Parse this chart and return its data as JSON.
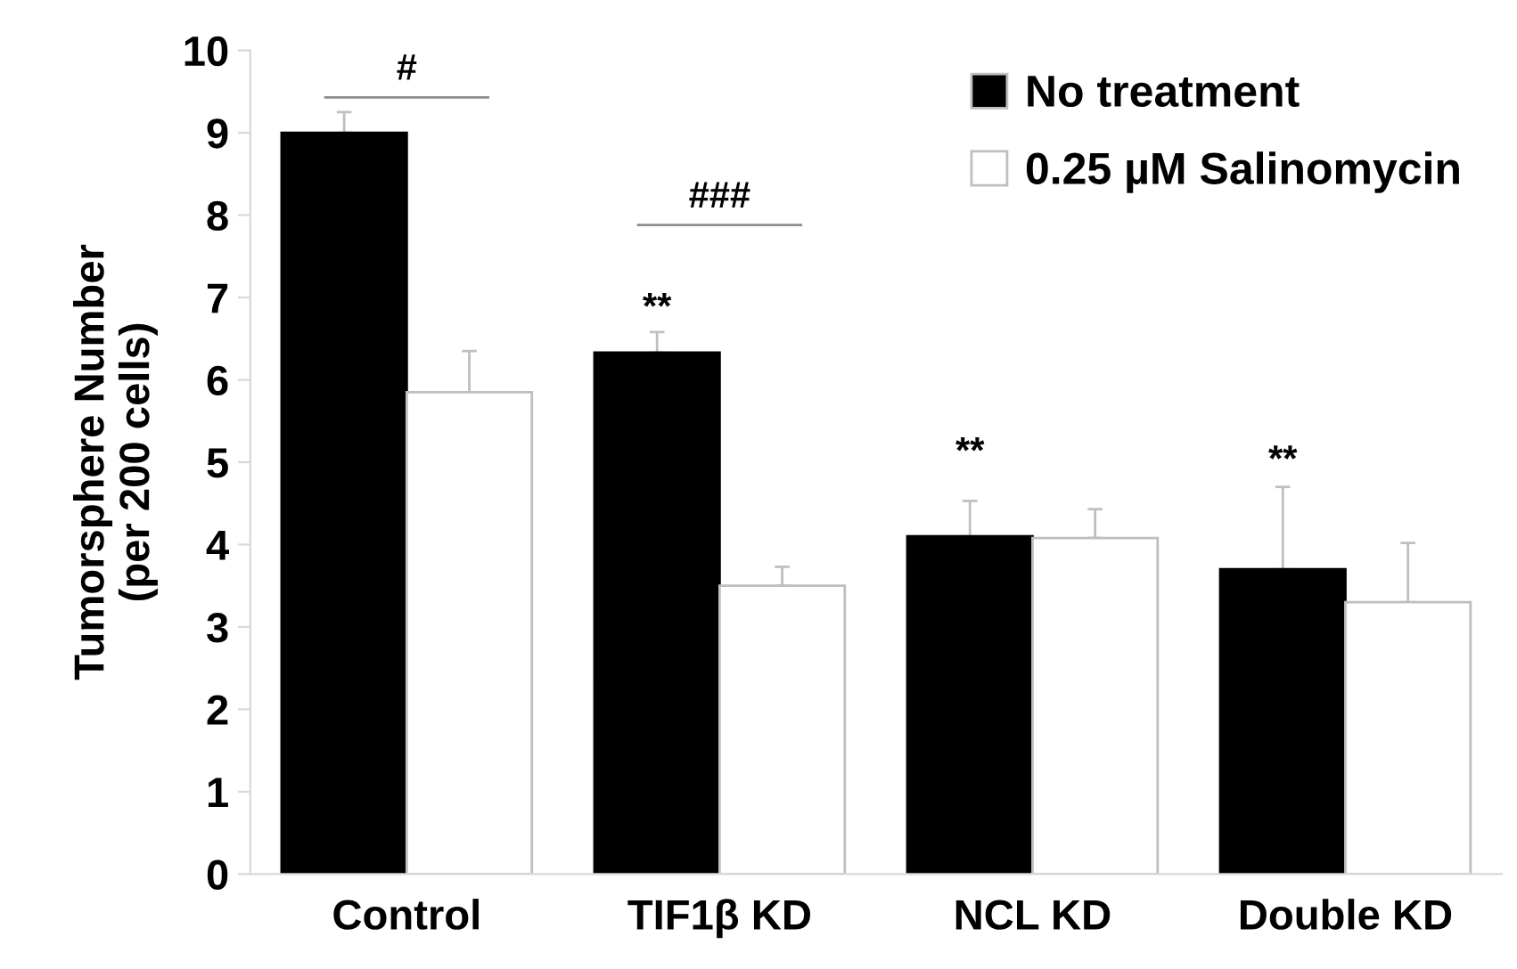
{
  "chart_data": {
    "type": "bar",
    "ylabel": "Tumorsphere Number\n(per 200 cells)",
    "categories": [
      "Control",
      "TIF1β KD",
      "NCL KD",
      "Double KD"
    ],
    "series": [
      {
        "name": "No treatment",
        "color": "#000000",
        "values": [
          9.0,
          6.33,
          4.1,
          3.7
        ],
        "errors": [
          [
            9.0,
            9.25
          ],
          [
            6.33,
            6.58
          ],
          [
            4.1,
            4.53
          ],
          [
            3.7,
            4.7
          ]
        ]
      },
      {
        "name": "0.25 µM Salinomycin",
        "color": "#ffffff",
        "values": [
          5.85,
          3.5,
          4.08,
          3.3
        ],
        "errors": [
          [
            5.85,
            6.35
          ],
          [
            3.5,
            3.73
          ],
          [
            4.08,
            4.43
          ],
          [
            3.3,
            4.02
          ]
        ]
      }
    ],
    "ylim": [
      0,
      10
    ],
    "yticks": [
      0,
      1,
      2,
      3,
      4,
      5,
      6,
      7,
      8,
      9,
      10
    ],
    "grid": false,
    "legend": "top right",
    "annotations": [
      "#",
      "###",
      "**",
      "**",
      "**"
    ]
  }
}
